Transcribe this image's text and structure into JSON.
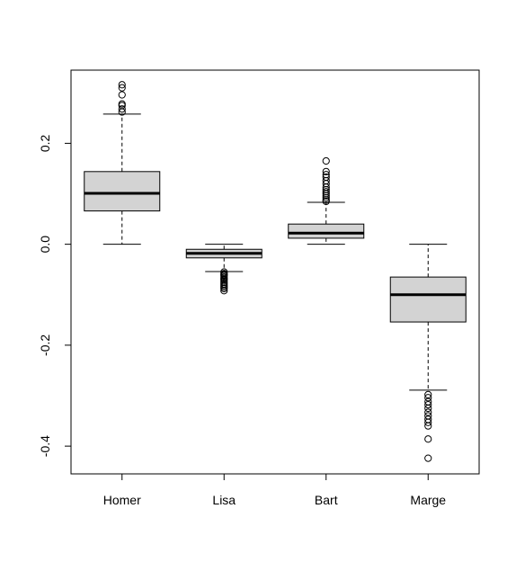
{
  "chart_data": {
    "type": "boxplot",
    "categories": [
      "Homer",
      "Lisa",
      "Bart",
      "Marge"
    ],
    "y_ticks": [
      {
        "value": -0.4,
        "label": "-0.4"
      },
      {
        "value": -0.2,
        "label": "-0.2"
      },
      {
        "value": 0.0,
        "label": "0.0"
      },
      {
        "value": 0.2,
        "label": "0.2"
      }
    ],
    "ylim": [
      -0.455,
      0.345
    ],
    "xlim": [
      0.5,
      4.5
    ],
    "box_fill": "#d3d3d3",
    "stroke": "#000000",
    "boxes": [
      {
        "name": "Homer",
        "whisker_low": 0.0,
        "q1": 0.066,
        "median": 0.101,
        "q3": 0.144,
        "whisker_high": 0.258,
        "outliers": [
          0.262,
          0.268,
          0.275,
          0.278,
          0.296,
          0.31,
          0.316
        ]
      },
      {
        "name": "Lisa",
        "whisker_low": -0.054,
        "q1": -0.027,
        "median": -0.018,
        "q3": -0.01,
        "whisker_high": 0.0,
        "outliers": [
          -0.055,
          -0.058,
          -0.06,
          -0.062,
          -0.065,
          -0.068,
          -0.07,
          -0.073,
          -0.076,
          -0.079,
          -0.082,
          -0.085,
          -0.088,
          -0.092
        ]
      },
      {
        "name": "Bart",
        "whisker_low": 0.0,
        "q1": 0.012,
        "median": 0.022,
        "q3": 0.04,
        "whisker_high": 0.083,
        "outliers": [
          0.085,
          0.088,
          0.092,
          0.096,
          0.1,
          0.104,
          0.108,
          0.113,
          0.12,
          0.126,
          0.133,
          0.138,
          0.144,
          0.165
        ]
      },
      {
        "name": "Marge",
        "whisker_low": -0.289,
        "q1": -0.154,
        "median": -0.1,
        "q3": -0.065,
        "whisker_high": 0.0,
        "outliers": [
          -0.298,
          -0.304,
          -0.312,
          -0.318,
          -0.325,
          -0.333,
          -0.34,
          -0.347,
          -0.353,
          -0.36,
          -0.386,
          -0.424
        ]
      }
    ]
  }
}
